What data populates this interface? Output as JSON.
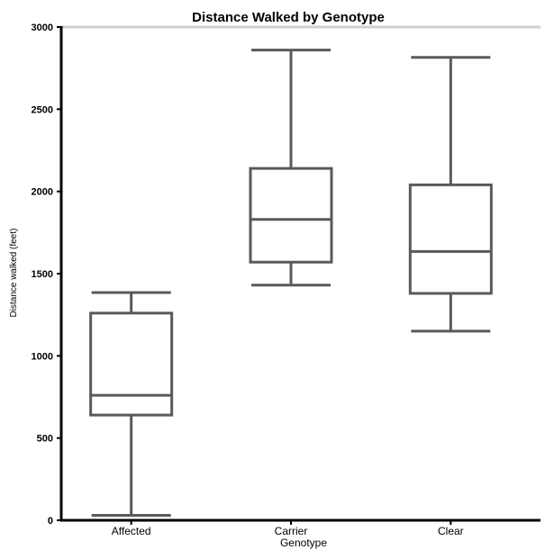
{
  "chart_data": {
    "type": "boxplot",
    "title": "Distance Walked by Genotype",
    "xlabel": "Genotype",
    "ylabel": "Distance walked (feet)",
    "ylim": [
      0,
      3000
    ],
    "yticks": [
      "0",
      "500",
      "1000",
      "1500",
      "2000",
      "2500",
      "3000"
    ],
    "categories": [
      "Affected",
      "Carrier",
      "Clear"
    ],
    "boxes": [
      {
        "category": "Affected",
        "min": 30,
        "q1": 640,
        "median": 760,
        "q3": 1260,
        "max": 1385
      },
      {
        "category": "Carrier",
        "min": 1430,
        "q1": 1570,
        "median": 1830,
        "q3": 2140,
        "max": 2860
      },
      {
        "category": "Clear",
        "min": 1150,
        "q1": 1380,
        "median": 1635,
        "q3": 2040,
        "max": 2815
      }
    ],
    "grid": false,
    "colors": {
      "box": "#5a5a5a",
      "axis": "#000000",
      "topline": "#d0d0d0"
    }
  }
}
